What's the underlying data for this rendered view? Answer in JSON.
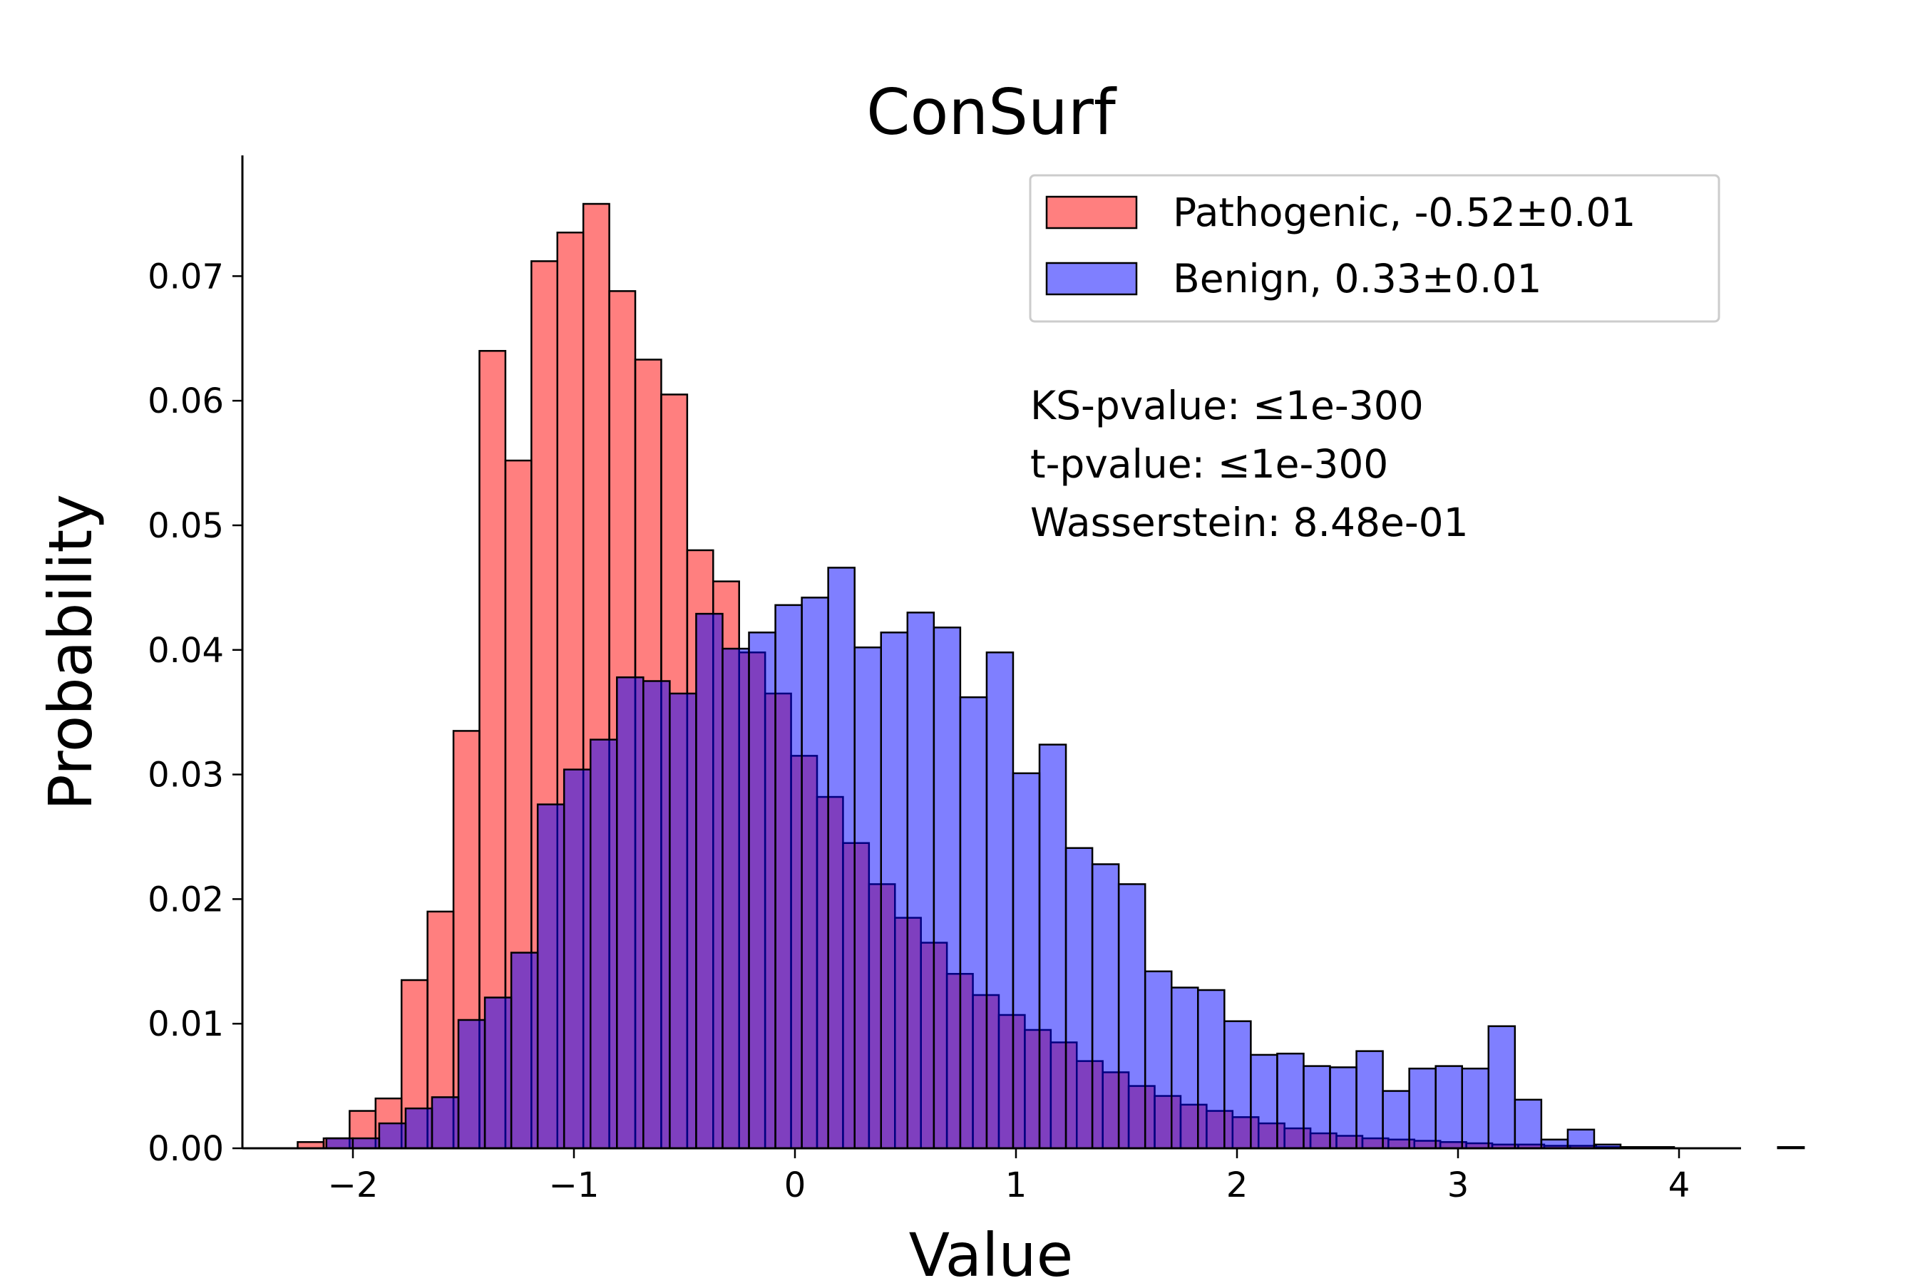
{
  "chart_data": {
    "type": "bar",
    "title": "ConSurf",
    "xlabel": "Value",
    "ylabel": "Probability",
    "xlim": [
      -2.5,
      4.25
    ],
    "ylim": [
      0,
      0.079
    ],
    "grid": false,
    "legend_position": "top-right",
    "xticks": [
      {
        "value": -2,
        "label": "−2"
      },
      {
        "value": -1,
        "label": "−1"
      },
      {
        "value": 0,
        "label": "0"
      },
      {
        "value": 1,
        "label": "1"
      },
      {
        "value": 2,
        "label": "2"
      },
      {
        "value": 3,
        "label": "3"
      },
      {
        "value": 4,
        "label": "4"
      }
    ],
    "yticks": [
      {
        "value": 0.0,
        "label": "0.00"
      },
      {
        "value": 0.01,
        "label": "0.01"
      },
      {
        "value": 0.02,
        "label": "0.02"
      },
      {
        "value": 0.03,
        "label": "0.03"
      },
      {
        "value": 0.04,
        "label": "0.04"
      },
      {
        "value": 0.05,
        "label": "0.05"
      },
      {
        "value": 0.06,
        "label": "0.06"
      },
      {
        "value": 0.07,
        "label": "0.07"
      }
    ],
    "series": [
      {
        "name": "Pathogenic, -0.52±0.01",
        "color": "#ff0000",
        "opacity": 0.5,
        "bin_start": -2.25,
        "bin_width": 0.1175,
        "values": [
          0.0005,
          0.0008,
          0.003,
          0.004,
          0.0135,
          0.019,
          0.0335,
          0.064,
          0.0552,
          0.0712,
          0.0735,
          0.0758,
          0.0688,
          0.0633,
          0.0605,
          0.048,
          0.0455,
          0.0398,
          0.0365,
          0.0315,
          0.0282,
          0.0245,
          0.0212,
          0.0185,
          0.0165,
          0.014,
          0.0123,
          0.0107,
          0.0095,
          0.0085,
          0.007,
          0.0061,
          0.005,
          0.0042,
          0.0035,
          0.003,
          0.0025,
          0.002,
          0.0016,
          0.0012,
          0.001,
          0.0008,
          0.0007,
          0.0006,
          0.0005,
          0.0004,
          0.0003,
          0.0003,
          0.0002,
          0.0002,
          0.0001,
          0.0001,
          0.0001,
          0.0,
          0.0,
          0.0,
          0.0,
          0.0001
        ]
      },
      {
        "name": "Benign, 0.33±0.01",
        "color": "#0000ff",
        "opacity": 0.5,
        "bin_start": -2.12,
        "bin_width": 0.1195,
        "values": [
          0.0008,
          0.0008,
          0.002,
          0.0032,
          0.0041,
          0.0103,
          0.0121,
          0.0157,
          0.0276,
          0.0304,
          0.0328,
          0.0378,
          0.0375,
          0.0365,
          0.0429,
          0.0401,
          0.0414,
          0.0436,
          0.0442,
          0.0466,
          0.0402,
          0.0414,
          0.043,
          0.0418,
          0.0362,
          0.0398,
          0.0301,
          0.0324,
          0.0241,
          0.0228,
          0.0212,
          0.0142,
          0.0129,
          0.0127,
          0.0102,
          0.0075,
          0.0076,
          0.0066,
          0.0065,
          0.0078,
          0.0046,
          0.0064,
          0.0066,
          0.0064,
          0.0098,
          0.0039,
          0.0007,
          0.0015,
          0.0003,
          0.0001,
          0.0001
        ]
      }
    ],
    "annotations": [
      "KS-pvalue: ≤1e-300",
      "t-pvalue: ≤1e-300",
      "Wasserstein: 8.48e-01"
    ]
  }
}
